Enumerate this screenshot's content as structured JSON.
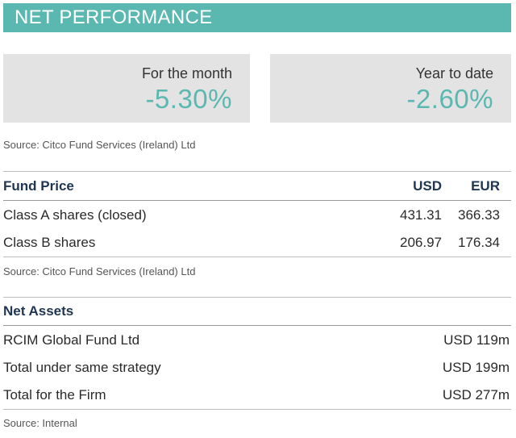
{
  "header": {
    "title": "NET PERFORMANCE"
  },
  "performance": {
    "month": {
      "label": "For the month",
      "value": "-5.30%"
    },
    "ytd": {
      "label": "Year to date",
      "value": "-2.60%"
    },
    "source": "Source: Citco Fund Services (Ireland) Ltd"
  },
  "fund_price": {
    "title": "Fund Price",
    "col_usd": "USD",
    "col_eur": "EUR",
    "rows": [
      {
        "name": "Class A shares (closed)",
        "usd": "431.31",
        "eur": "366.33"
      },
      {
        "name": "Class B shares",
        "usd": "206.97",
        "eur": "176.34"
      }
    ],
    "source": "Source: Citco Fund Services (Ireland) Ltd"
  },
  "net_assets": {
    "title": "Net Assets",
    "rows": [
      {
        "name": "RCIM Global Fund Ltd",
        "value": "USD 119m"
      },
      {
        "name": "Total under same strategy",
        "value": "USD 199m"
      },
      {
        "name": "Total for the Firm",
        "value": "USD 277m"
      }
    ],
    "source": "Source: Internal"
  },
  "colors": {
    "accent": "#5bb8b0",
    "panel": "#e3e3e3",
    "heading": "#1f3550"
  }
}
